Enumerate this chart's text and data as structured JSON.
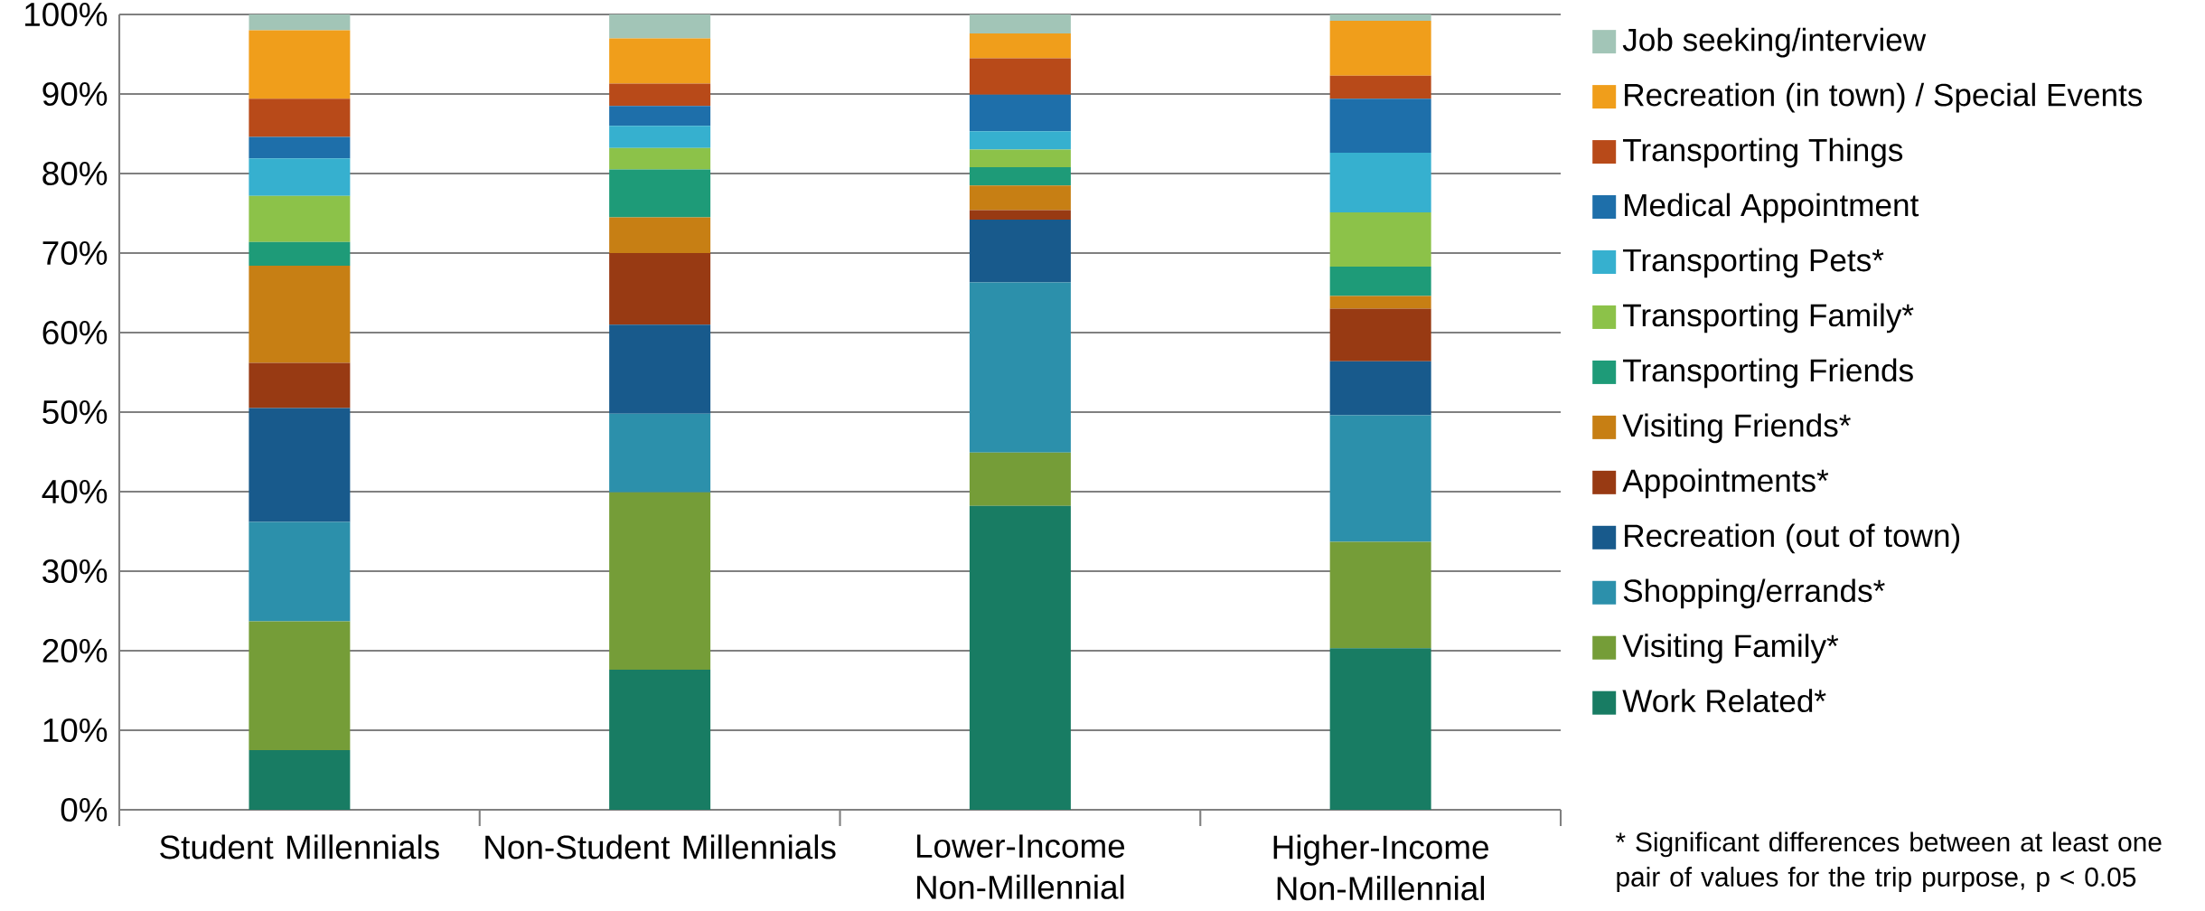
{
  "chart_data": {
    "type": "bar",
    "stacked": true,
    "categories": [
      "Student Millennials",
      "Non-Student Millennials",
      "Lower-Income Non-Millennial",
      "Higher-Income Non-Millennial"
    ],
    "series": [
      {
        "name": "Work Related*",
        "color": "#187c63",
        "values": [
          7.5,
          17.6,
          38.2,
          20.3
        ]
      },
      {
        "name": "Visiting Family*",
        "color": "#759d38",
        "values": [
          16.2,
          22.3,
          6.7,
          13.4
        ]
      },
      {
        "name": "Shopping/errands*",
        "color": "#2c90ab",
        "values": [
          12.5,
          9.9,
          21.4,
          15.9
        ]
      },
      {
        "name": "Recreation (out of town)",
        "color": "#185a8c",
        "values": [
          14.3,
          11.2,
          7.9,
          6.8
        ]
      },
      {
        "name": "Appointments*",
        "color": "#983a13",
        "values": [
          5.7,
          9.0,
          1.2,
          6.6
        ]
      },
      {
        "name": "Visiting Friends*",
        "color": "#c77f14",
        "values": [
          12.2,
          4.5,
          3.1,
          1.6
        ]
      },
      {
        "name": "Transporting Friends",
        "color": "#1e9b78",
        "values": [
          3.0,
          6.0,
          2.3,
          3.7
        ]
      },
      {
        "name": "Transporting Family*",
        "color": "#8cc249",
        "values": [
          5.8,
          2.7,
          2.2,
          6.8
        ]
      },
      {
        "name": "Transporting Pets*",
        "color": "#36b0cf",
        "values": [
          4.7,
          2.8,
          2.3,
          7.5
        ]
      },
      {
        "name": "Medical Appointment",
        "color": "#1e6faa",
        "values": [
          2.7,
          2.5,
          4.6,
          6.8
        ]
      },
      {
        "name": "Transporting Things",
        "color": "#b84a19",
        "values": [
          4.8,
          2.8,
          4.6,
          2.9
        ]
      },
      {
        "name": "Recreation (in town) / Special Events",
        "color": "#f09e1b",
        "values": [
          8.6,
          5.7,
          3.1,
          6.9
        ]
      },
      {
        "name": "Job seeking/interview",
        "color": "#a2c5b7",
        "values": [
          2.0,
          3.0,
          2.4,
          0.8
        ]
      }
    ],
    "ylim": [
      0,
      100
    ],
    "yticks": [
      {
        "value": 0,
        "label": "0%"
      },
      {
        "value": 10,
        "label": "10%"
      },
      {
        "value": 20,
        "label": "20%"
      },
      {
        "value": 30,
        "label": "30%"
      },
      {
        "value": 40,
        "label": "40%"
      },
      {
        "value": 50,
        "label": "50%"
      },
      {
        "value": 60,
        "label": "60%"
      },
      {
        "value": 70,
        "label": "70%"
      },
      {
        "value": 80,
        "label": "80%"
      },
      {
        "value": 90,
        "label": "90%"
      },
      {
        "value": 100,
        "label": "100%"
      }
    ],
    "grid": "y",
    "legend": "right",
    "annotations": [
      "* Significant differences between at least one pair of values for the trip purpose, p < 0.05"
    ]
  }
}
